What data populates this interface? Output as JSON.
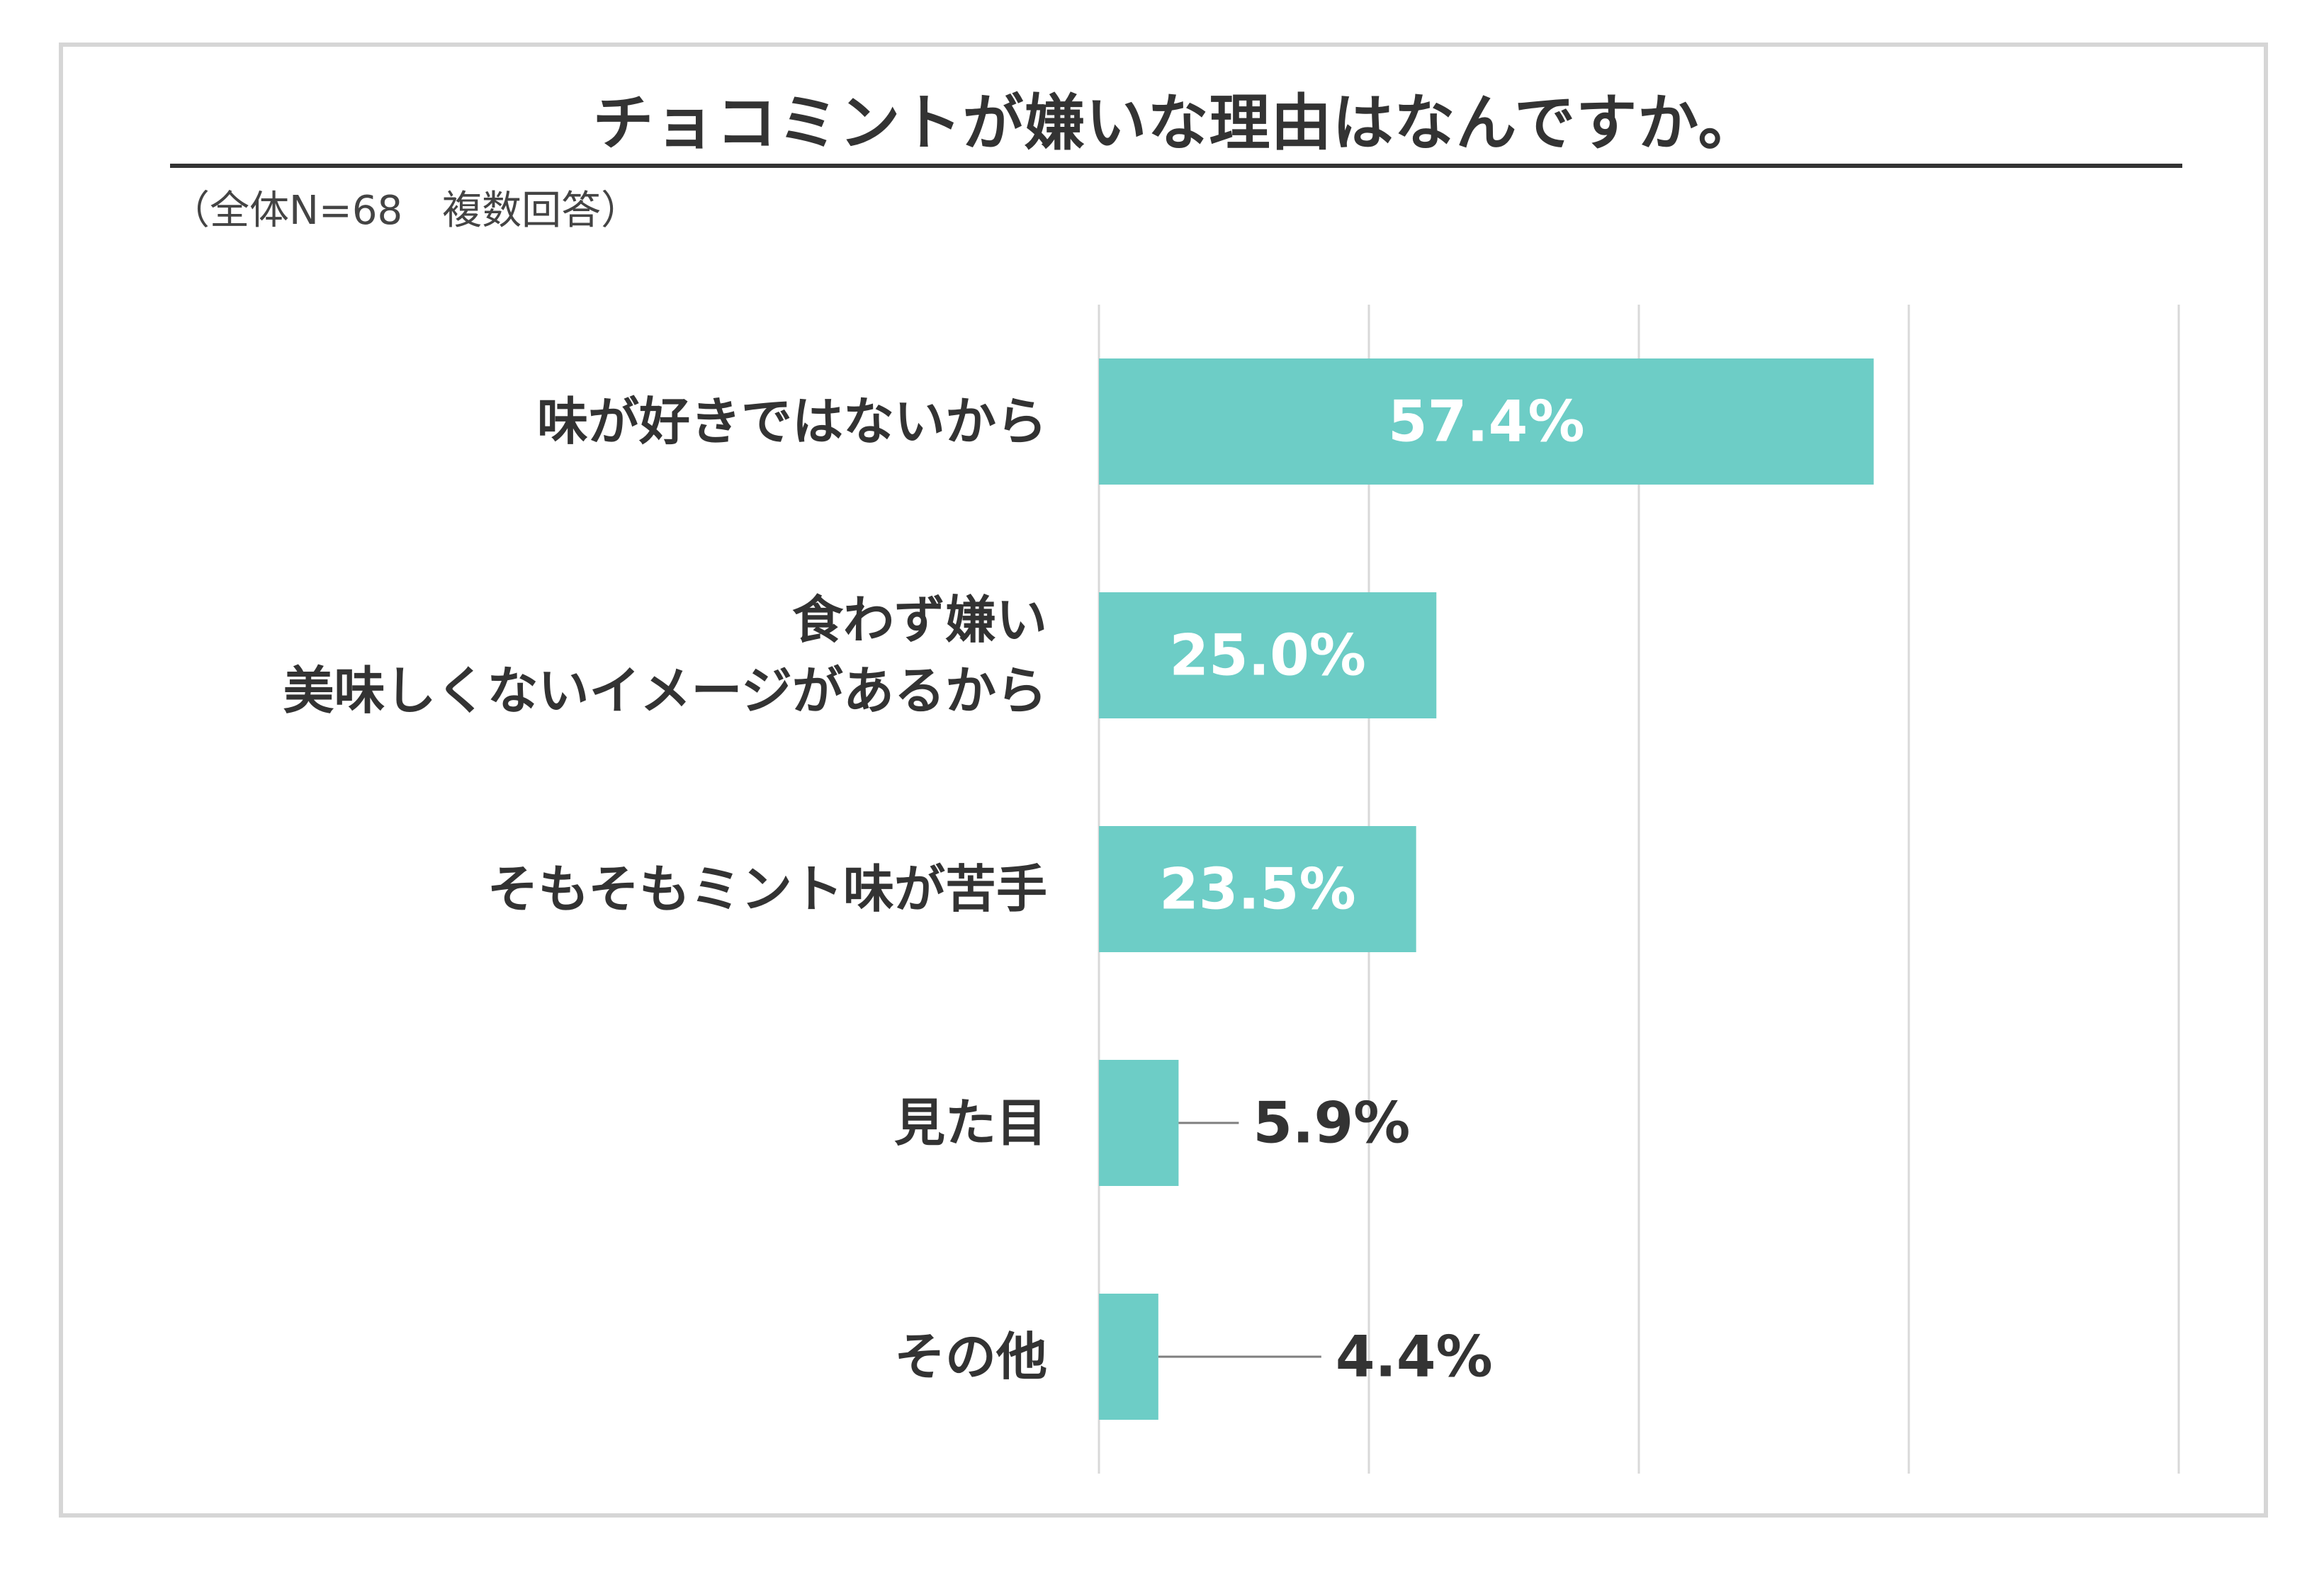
{
  "title": "チョコミントが嫌いな理由はなんですか。",
  "note": "（全体N=68　複数回答）",
  "colors": {
    "bar": "#6dcdc6",
    "grid": "#d9d9d9",
    "text": "#333333",
    "leader": "#7f7f7f"
  },
  "chart_data": {
    "type": "bar",
    "orientation": "horizontal",
    "categories": [
      [
        "味が好きではないから"
      ],
      [
        "食わず嫌い",
        "美味しくないイメージがあるから"
      ],
      [
        "そもそもミント味が苦手"
      ],
      [
        "見た目"
      ],
      [
        "その他"
      ]
    ],
    "values": [
      57.4,
      25.0,
      23.5,
      5.9,
      4.4
    ],
    "value_labels": [
      "57.4%",
      "25.0%",
      "23.5%",
      "5.9%",
      "4.4%"
    ],
    "label_position": [
      "inside",
      "inside",
      "inside",
      "outside",
      "outside"
    ],
    "xlim": [
      0,
      80
    ],
    "grid": true,
    "legend": "none"
  }
}
